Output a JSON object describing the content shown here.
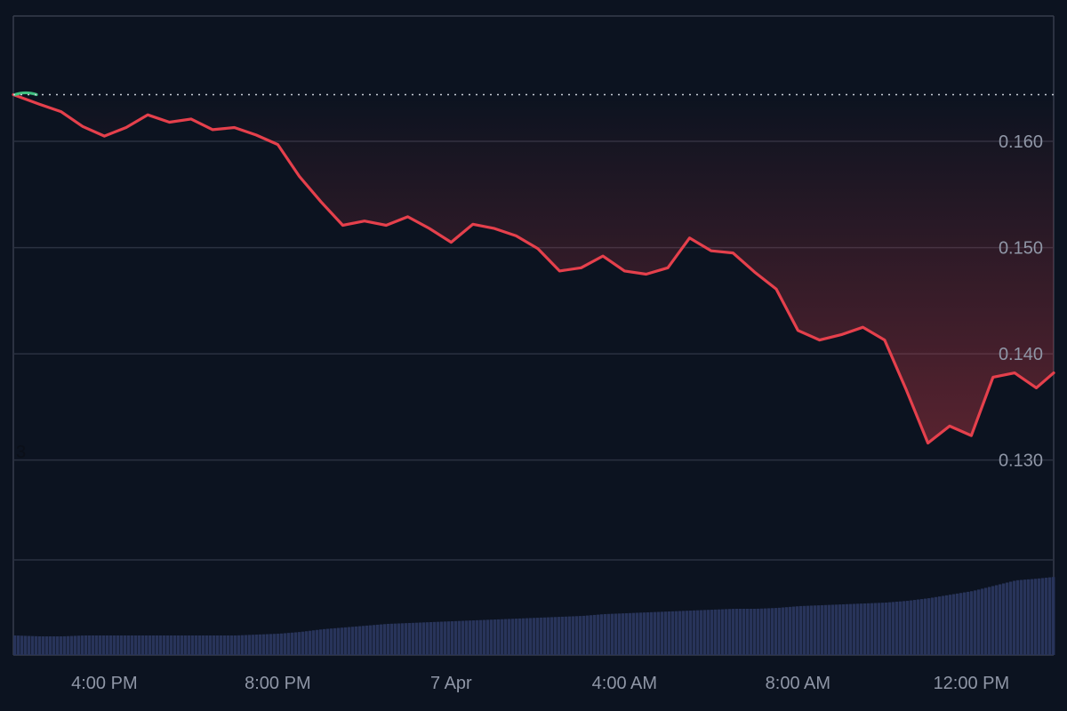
{
  "colors": {
    "background": "#0c1320",
    "gridline": "#2a3140",
    "border": "#363d4c",
    "price_line_down": "#e5404c",
    "price_line_up": "#3fbf7f",
    "area_fill_top": "#e5404c",
    "volume_bar": "#28345a",
    "reference_line": "#c9ced8",
    "tick_text": "#8f96a6"
  },
  "chart_data": [
    {
      "type": "line",
      "title": "",
      "xlabel": "",
      "ylabel": "",
      "x_ticks": [
        "4:00 PM",
        "8:00 PM",
        "7 Apr",
        "4:00 AM",
        "8:00 AM",
        "12:00 PM"
      ],
      "x_tick_positions_hours": [
        1,
        5,
        9,
        13,
        17,
        21
      ],
      "y_ticks": [
        "0.160",
        "0.150",
        "0.140",
        "0.130"
      ],
      "y_tick_values": [
        0.16,
        0.15,
        0.14,
        0.13
      ],
      "ylim": [
        0.1206,
        0.1718
      ],
      "xlim": [
        -1.1,
        22.9
      ],
      "edge_label": "3",
      "reference_line": {
        "value": 0.1644,
        "style": "dotted"
      },
      "grid": true,
      "series": [
        {
          "x": [
            -1.1,
            -0.5,
            0.0,
            0.5,
            1.0,
            1.5,
            2.0,
            2.5,
            3.0,
            3.5,
            4.0,
            4.5,
            5.0,
            5.5,
            6.0,
            6.5,
            7.0,
            7.5,
            8.0,
            8.5,
            9.0,
            9.5,
            10.0,
            10.5,
            11.0,
            11.5,
            12.0,
            12.5,
            13.0,
            13.5,
            14.0,
            14.5,
            15.0,
            15.5,
            16.0,
            16.5,
            17.0,
            17.5,
            18.0,
            18.5,
            19.0,
            19.5,
            20.0,
            20.5,
            21.0,
            21.5,
            22.0,
            22.5,
            22.9
          ],
          "y": [
            0.1644,
            0.1635,
            0.1628,
            0.1614,
            0.1605,
            0.1613,
            0.1625,
            0.1618,
            0.1621,
            0.1611,
            0.1613,
            0.1606,
            0.1597,
            0.1567,
            0.1543,
            0.1521,
            0.1525,
            0.1521,
            0.1529,
            0.1518,
            0.1505,
            0.1522,
            0.1518,
            0.1511,
            0.1499,
            0.1478,
            0.1481,
            0.1492,
            0.1478,
            0.1475,
            0.1481,
            0.1509,
            0.1497,
            0.1495,
            0.1477,
            0.1461,
            0.1422,
            0.1413,
            0.1418,
            0.1425,
            0.1413,
            0.1366,
            0.1316,
            0.1332,
            0.1323,
            0.1378,
            0.1382,
            0.1368,
            0.1382
          ]
        }
      ]
    },
    {
      "type": "bar",
      "title": "",
      "xlabel": "",
      "ylabel": "",
      "grid": false,
      "x": [
        -1.1,
        -0.5,
        0.0,
        0.5,
        1.0,
        1.5,
        2.0,
        2.5,
        3.0,
        3.5,
        4.0,
        4.5,
        5.0,
        5.5,
        6.0,
        6.5,
        7.0,
        7.5,
        8.0,
        8.5,
        9.0,
        9.5,
        10.0,
        10.5,
        11.0,
        11.5,
        12.0,
        12.5,
        13.0,
        13.5,
        14.0,
        14.5,
        15.0,
        15.5,
        16.0,
        16.5,
        17.0,
        17.5,
        18.0,
        18.5,
        19.0,
        19.5,
        20.0,
        20.5,
        21.0,
        21.5,
        22.0,
        22.5,
        22.9
      ],
      "values": [
        22,
        21,
        21,
        22,
        22,
        22,
        22,
        22,
        22,
        22,
        22,
        23,
        24,
        26,
        29,
        31,
        33,
        35,
        36,
        37,
        38,
        39,
        40,
        41,
        42,
        43,
        44,
        46,
        47,
        48,
        49,
        50,
        51,
        52,
        52,
        53,
        55,
        56,
        57,
        58,
        59,
        61,
        64,
        68,
        72,
        78,
        84,
        86,
        88
      ]
    }
  ]
}
